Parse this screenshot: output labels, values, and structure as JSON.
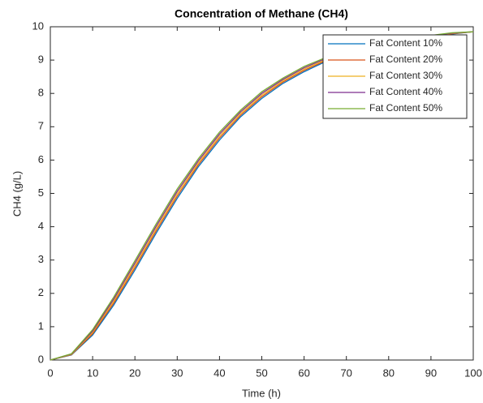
{
  "chart_data": {
    "type": "line",
    "title": "Concentration of Methane (CH4)",
    "x_label": "Time (h)",
    "y_label": "CH4 (g/L)",
    "x": [
      0,
      5,
      10,
      15,
      20,
      25,
      30,
      35,
      40,
      45,
      50,
      55,
      60,
      65,
      70,
      75,
      80,
      85,
      90,
      95,
      100
    ],
    "series": [
      {
        "name": "Fat Content 10%",
        "color": "#0072BD",
        "values": [
          0,
          0.15,
          0.75,
          1.65,
          2.7,
          3.8,
          4.85,
          5.8,
          6.6,
          7.3,
          7.85,
          8.3,
          8.65,
          8.95,
          9.15,
          9.35,
          9.5,
          9.6,
          9.7,
          9.78,
          9.85
        ]
      },
      {
        "name": "Fat Content 20%",
        "color": "#D95319",
        "values": [
          0,
          0.16,
          0.79,
          1.71,
          2.77,
          3.87,
          4.92,
          5.86,
          6.66,
          7.35,
          7.9,
          8.34,
          8.69,
          8.98,
          9.18,
          9.37,
          9.52,
          9.61,
          9.71,
          9.79,
          9.85
        ]
      },
      {
        "name": "Fat Content 30%",
        "color": "#EDB120",
        "values": [
          0,
          0.17,
          0.83,
          1.77,
          2.84,
          3.94,
          4.99,
          5.92,
          6.72,
          7.4,
          7.95,
          8.38,
          8.73,
          9.01,
          9.21,
          9.39,
          9.54,
          9.62,
          9.72,
          9.8,
          9.85
        ]
      },
      {
        "name": "Fat Content 40%",
        "color": "#7E2F8E",
        "values": [
          0,
          0.18,
          0.87,
          1.83,
          2.91,
          4.01,
          5.06,
          5.98,
          6.78,
          7.45,
          8.0,
          8.42,
          8.77,
          9.04,
          9.24,
          9.41,
          9.56,
          9.63,
          9.73,
          9.81,
          9.85
        ]
      },
      {
        "name": "Fat Content 50%",
        "color": "#77AC30",
        "values": [
          0,
          0.19,
          0.91,
          1.89,
          2.98,
          4.08,
          5.13,
          6.04,
          6.84,
          7.5,
          8.05,
          8.46,
          8.81,
          9.07,
          9.27,
          9.43,
          9.58,
          9.64,
          9.74,
          9.82,
          9.85
        ]
      }
    ],
    "xlim": [
      0,
      100
    ],
    "xticks": [
      0,
      10,
      20,
      30,
      40,
      50,
      60,
      70,
      80,
      90,
      100
    ],
    "ylim": [
      0,
      10
    ],
    "yticks": [
      0,
      1,
      2,
      3,
      4,
      5,
      6,
      7,
      8,
      9,
      10
    ],
    "grid": false,
    "legend": "northeast"
  }
}
